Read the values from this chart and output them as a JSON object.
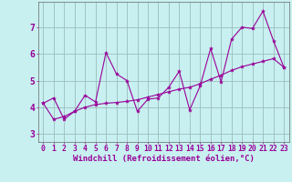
{
  "xlabel": "Windchill (Refroidissement éolien,°C)",
  "background_color": "#c8f0f0",
  "line_color": "#990099",
  "xlim": [
    -0.5,
    23.5
  ],
  "ylim": [
    2.7,
    7.95
  ],
  "x_ticks": [
    0,
    1,
    2,
    3,
    4,
    5,
    6,
    7,
    8,
    9,
    10,
    11,
    12,
    13,
    14,
    15,
    16,
    17,
    18,
    19,
    20,
    21,
    22,
    23
  ],
  "y_ticks": [
    3,
    4,
    5,
    6,
    7
  ],
  "line1_x": [
    0,
    1,
    2,
    3,
    4,
    5,
    6,
    7,
    8,
    9,
    10,
    11,
    12,
    13,
    14,
    15,
    16,
    17,
    18,
    19,
    20,
    21,
    22,
    23
  ],
  "line1_y": [
    4.15,
    4.35,
    3.55,
    3.85,
    4.45,
    4.2,
    6.05,
    5.25,
    5.0,
    3.85,
    4.3,
    4.35,
    4.75,
    5.35,
    3.9,
    4.8,
    6.2,
    4.95,
    6.55,
    7.0,
    6.95,
    7.6,
    6.5,
    5.5
  ],
  "line2_x": [
    0,
    1,
    2,
    3,
    4,
    5,
    6,
    7,
    8,
    9,
    10,
    11,
    12,
    13,
    14,
    15,
    16,
    17,
    18,
    19,
    20,
    21,
    22,
    23
  ],
  "line2_y": [
    4.15,
    3.55,
    3.65,
    3.85,
    4.0,
    4.1,
    4.15,
    4.18,
    4.22,
    4.28,
    4.38,
    4.48,
    4.58,
    4.68,
    4.75,
    4.88,
    5.05,
    5.2,
    5.38,
    5.52,
    5.62,
    5.72,
    5.82,
    5.5
  ],
  "tick_fontsize": 5.8,
  "xlabel_fontsize": 6.5,
  "ytick_fontsize": 7.0,
  "grid_color": "#9bbdbd",
  "figsize": [
    3.2,
    2.0
  ],
  "dpi": 100
}
